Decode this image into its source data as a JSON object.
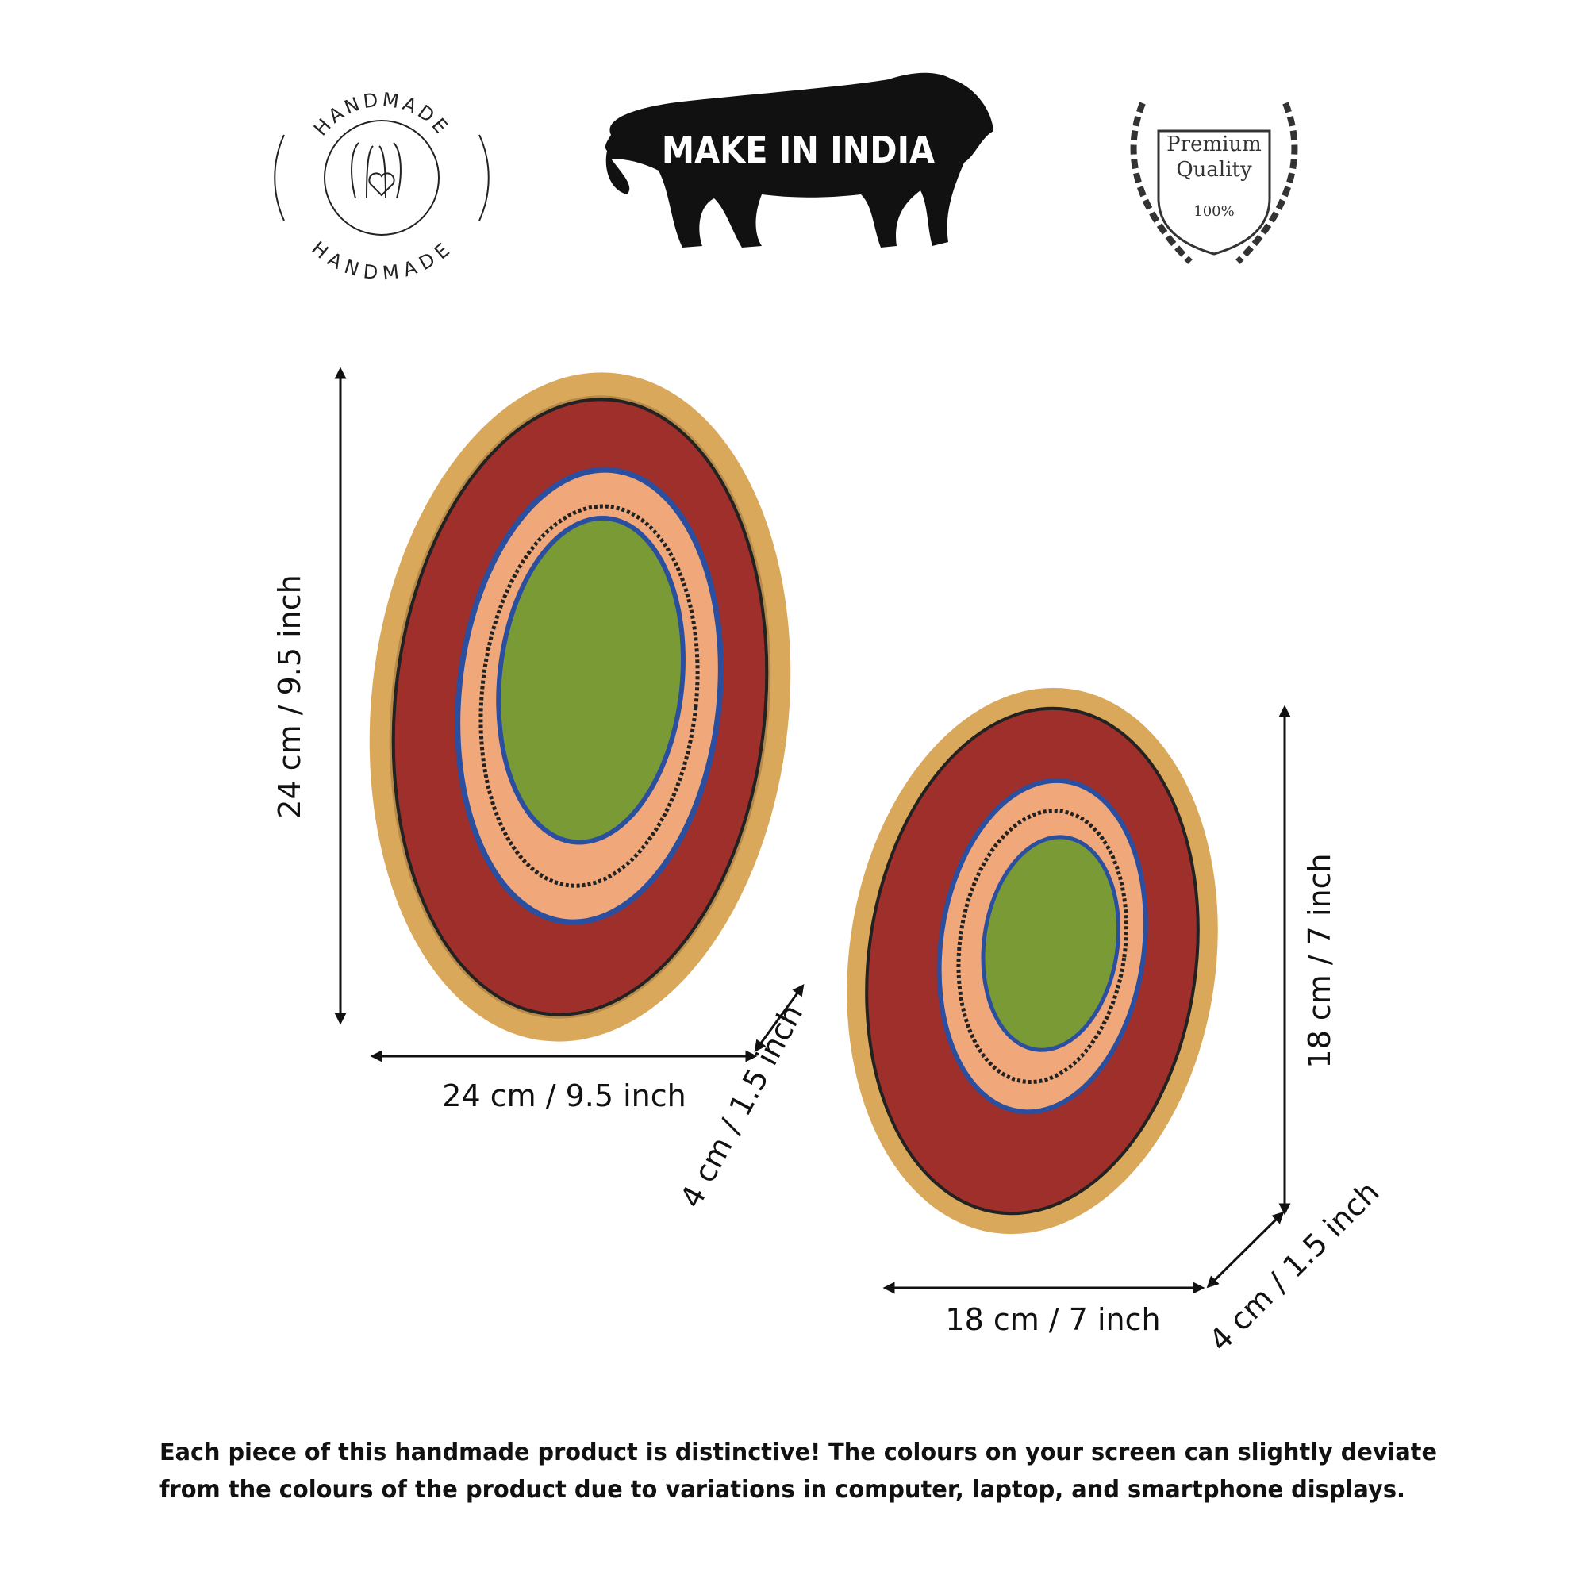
{
  "badges": {
    "handmade": {
      "top": "HANDMADE",
      "bottom": "HANDMADE"
    },
    "make_in_india": "MAKE IN INDIA",
    "premium": {
      "line1": "Premium",
      "line2": "Quality",
      "percent": "100%"
    }
  },
  "dimensions": {
    "large": {
      "height": "24 cm / 9.5 inch",
      "width": "24 cm / 9.5 inch",
      "depth": "4 cm / 1.5 inch"
    },
    "small": {
      "height": "18 cm / 7 inch",
      "width": "18 cm / 7 inch",
      "depth": "4 cm / 1.5 inch"
    }
  },
  "disclaimer": {
    "line1": "Each piece of this handmade product is distinctive! The colours on your screen can slightly deviate",
    "line2": "from the colours of the product due to variations in computer, laptop, and smartphone displays."
  }
}
